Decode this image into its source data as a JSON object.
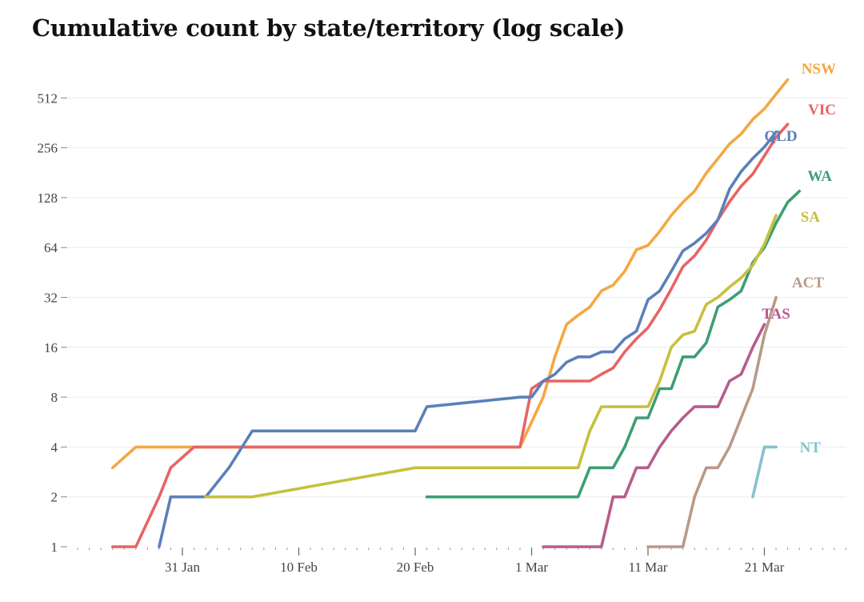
{
  "chart_data": {
    "type": "line",
    "title": "Cumulative count by state/territory (log scale)",
    "xlabel": "",
    "ylabel": "",
    "yscale": "log2",
    "ylim": [
      1,
      725
    ],
    "xlim": [
      "2020-01-22",
      "2020-03-30"
    ],
    "grid": true,
    "legend": "direct labels at line ends",
    "x_ticks": [
      {
        "date": "2020-01-31",
        "label": "31 Jan"
      },
      {
        "date": "2020-02-10",
        "label": "10 Feb"
      },
      {
        "date": "2020-02-20",
        "label": "20 Feb"
      },
      {
        "date": "2020-03-01",
        "label": "1 Mar"
      },
      {
        "date": "2020-03-11",
        "label": "11 Mar"
      },
      {
        "date": "2020-03-21",
        "label": "21 Mar"
      }
    ],
    "y_ticks": [
      {
        "value": 1,
        "label": "1"
      },
      {
        "value": 2,
        "label": "2"
      },
      {
        "value": 4,
        "label": "4"
      },
      {
        "value": 8,
        "label": "8"
      },
      {
        "value": 16,
        "label": "16"
      },
      {
        "value": 32,
        "label": "32"
      },
      {
        "value": 64,
        "label": "64"
      },
      {
        "value": 128,
        "label": "128"
      },
      {
        "value": 256,
        "label": "256"
      },
      {
        "value": 512,
        "label": "512"
      }
    ],
    "series": [
      {
        "name": "NSW",
        "color": "#f5a742",
        "points": [
          [
            "2020-01-25",
            3
          ],
          [
            "2020-01-27",
            4
          ],
          [
            "2020-02-29",
            4
          ],
          [
            "2020-03-02",
            8
          ],
          [
            "2020-03-03",
            14
          ],
          [
            "2020-03-04",
            22
          ],
          [
            "2020-03-05",
            25
          ],
          [
            "2020-03-06",
            28
          ],
          [
            "2020-03-07",
            35
          ],
          [
            "2020-03-08",
            38
          ],
          [
            "2020-03-09",
            46
          ],
          [
            "2020-03-10",
            62
          ],
          [
            "2020-03-11",
            66
          ],
          [
            "2020-03-12",
            80
          ],
          [
            "2020-03-13",
            100
          ],
          [
            "2020-03-14",
            120
          ],
          [
            "2020-03-15",
            140
          ],
          [
            "2020-03-16",
            180
          ],
          [
            "2020-03-17",
            220
          ],
          [
            "2020-03-18",
            270
          ],
          [
            "2020-03-19",
            310
          ],
          [
            "2020-03-20",
            380
          ],
          [
            "2020-03-21",
            440
          ],
          [
            "2020-03-22",
            540
          ],
          [
            "2020-03-23",
            660
          ]
        ]
      },
      {
        "name": "VIC",
        "color": "#e86464",
        "points": [
          [
            "2020-01-25",
            1
          ],
          [
            "2020-01-27",
            1
          ],
          [
            "2020-01-29",
            2
          ],
          [
            "2020-01-30",
            3
          ],
          [
            "2020-02-01",
            4
          ],
          [
            "2020-02-29",
            4
          ],
          [
            "2020-03-01",
            9
          ],
          [
            "2020-03-02",
            10
          ],
          [
            "2020-03-03",
            10
          ],
          [
            "2020-03-04",
            10
          ],
          [
            "2020-03-05",
            10
          ],
          [
            "2020-03-06",
            10
          ],
          [
            "2020-03-07",
            11
          ],
          [
            "2020-03-08",
            12
          ],
          [
            "2020-03-09",
            15
          ],
          [
            "2020-03-10",
            18
          ],
          [
            "2020-03-11",
            21
          ],
          [
            "2020-03-12",
            27
          ],
          [
            "2020-03-13",
            36
          ],
          [
            "2020-03-14",
            49
          ],
          [
            "2020-03-15",
            57
          ],
          [
            "2020-03-16",
            71
          ],
          [
            "2020-03-17",
            94
          ],
          [
            "2020-03-18",
            121
          ],
          [
            "2020-03-19",
            150
          ],
          [
            "2020-03-20",
            178
          ],
          [
            "2020-03-21",
            229
          ],
          [
            "2020-03-22",
            296
          ],
          [
            "2020-03-23",
            355
          ]
        ]
      },
      {
        "name": "QLD",
        "color": "#5b80b9",
        "points": [
          [
            "2020-01-29",
            1
          ],
          [
            "2020-01-30",
            2
          ],
          [
            "2020-02-01",
            2
          ],
          [
            "2020-02-02",
            2
          ],
          [
            "2020-02-04",
            3
          ],
          [
            "2020-02-06",
            5
          ],
          [
            "2020-02-20",
            5
          ],
          [
            "2020-02-21",
            7
          ],
          [
            "2020-02-29",
            8
          ],
          [
            "2020-03-01",
            8
          ],
          [
            "2020-03-02",
            10
          ],
          [
            "2020-03-03",
            11
          ],
          [
            "2020-03-04",
            13
          ],
          [
            "2020-03-05",
            14
          ],
          [
            "2020-03-06",
            14
          ],
          [
            "2020-03-07",
            15
          ],
          [
            "2020-03-08",
            15
          ],
          [
            "2020-03-09",
            18
          ],
          [
            "2020-03-10",
            20
          ],
          [
            "2020-03-11",
            31
          ],
          [
            "2020-03-12",
            35
          ],
          [
            "2020-03-13",
            46
          ],
          [
            "2020-03-14",
            61
          ],
          [
            "2020-03-15",
            68
          ],
          [
            "2020-03-16",
            78
          ],
          [
            "2020-03-17",
            94
          ],
          [
            "2020-03-18",
            144
          ],
          [
            "2020-03-19",
            184
          ],
          [
            "2020-03-20",
            221
          ],
          [
            "2020-03-21",
            259
          ],
          [
            "2020-03-22",
            319
          ]
        ]
      },
      {
        "name": "WA",
        "color": "#3e9e74",
        "points": [
          [
            "2020-02-21",
            2
          ],
          [
            "2020-03-05",
            2
          ],
          [
            "2020-03-06",
            3
          ],
          [
            "2020-03-07",
            3
          ],
          [
            "2020-03-08",
            3
          ],
          [
            "2020-03-09",
            4
          ],
          [
            "2020-03-10",
            6
          ],
          [
            "2020-03-11",
            6
          ],
          [
            "2020-03-12",
            9
          ],
          [
            "2020-03-13",
            9
          ],
          [
            "2020-03-14",
            14
          ],
          [
            "2020-03-15",
            14
          ],
          [
            "2020-03-16",
            17
          ],
          [
            "2020-03-17",
            28
          ],
          [
            "2020-03-18",
            31
          ],
          [
            "2020-03-19",
            35
          ],
          [
            "2020-03-20",
            52
          ],
          [
            "2020-03-21",
            64
          ],
          [
            "2020-03-22",
            90
          ],
          [
            "2020-03-23",
            120
          ],
          [
            "2020-03-24",
            140
          ]
        ]
      },
      {
        "name": "SA",
        "color": "#c6c03d",
        "points": [
          [
            "2020-02-02",
            2
          ],
          [
            "2020-02-06",
            2
          ],
          [
            "2020-02-20",
            3
          ],
          [
            "2020-03-05",
            3
          ],
          [
            "2020-03-06",
            5
          ],
          [
            "2020-03-07",
            7
          ],
          [
            "2020-03-11",
            7
          ],
          [
            "2020-03-12",
            10
          ],
          [
            "2020-03-13",
            16
          ],
          [
            "2020-03-14",
            19
          ],
          [
            "2020-03-15",
            20
          ],
          [
            "2020-03-16",
            29
          ],
          [
            "2020-03-17",
            32
          ],
          [
            "2020-03-18",
            37
          ],
          [
            "2020-03-19",
            42
          ],
          [
            "2020-03-20",
            50
          ],
          [
            "2020-03-21",
            67
          ],
          [
            "2020-03-22",
            100
          ]
        ]
      },
      {
        "name": "ACT",
        "color": "#b89a88",
        "points": [
          [
            "2020-03-11",
            1
          ],
          [
            "2020-03-14",
            1
          ],
          [
            "2020-03-15",
            2
          ],
          [
            "2020-03-16",
            3
          ],
          [
            "2020-03-17",
            3
          ],
          [
            "2020-03-18",
            4
          ],
          [
            "2020-03-19",
            6
          ],
          [
            "2020-03-20",
            9
          ],
          [
            "2020-03-21",
            19
          ],
          [
            "2020-03-22",
            32
          ]
        ]
      },
      {
        "name": "TAS",
        "color": "#b65d8c",
        "points": [
          [
            "2020-03-02",
            1
          ],
          [
            "2020-03-07",
            1
          ],
          [
            "2020-03-08",
            2
          ],
          [
            "2020-03-09",
            2
          ],
          [
            "2020-03-10",
            3
          ],
          [
            "2020-03-11",
            3
          ],
          [
            "2020-03-12",
            4
          ],
          [
            "2020-03-13",
            5
          ],
          [
            "2020-03-14",
            6
          ],
          [
            "2020-03-15",
            7
          ],
          [
            "2020-03-16",
            7
          ],
          [
            "2020-03-17",
            7
          ],
          [
            "2020-03-18",
            10
          ],
          [
            "2020-03-19",
            11
          ],
          [
            "2020-03-20",
            16
          ],
          [
            "2020-03-21",
            22
          ]
        ]
      },
      {
        "name": "NT",
        "color": "#86c1cf",
        "points": [
          [
            "2020-03-20",
            2
          ],
          [
            "2020-03-21",
            4
          ],
          [
            "2020-03-22",
            4
          ]
        ]
      }
    ]
  }
}
